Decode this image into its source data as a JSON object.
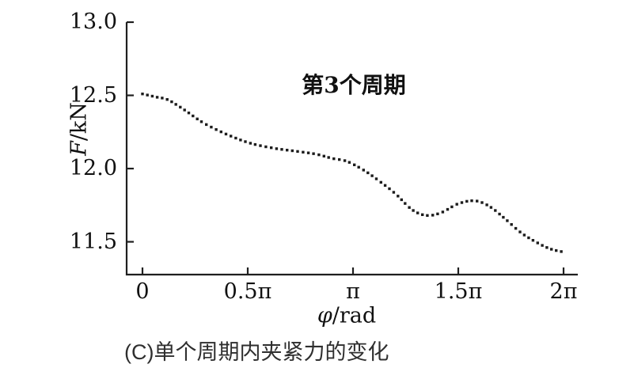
{
  "figure": {
    "ylabel_italic": "F",
    "ylabel_rest": "/kN",
    "xlabel_italic": "φ",
    "xlabel_rest": "/rad",
    "caption": "(C)单个周期内夹紧力的变化"
  },
  "chart_data": {
    "type": "scatter",
    "style": "dotted-line",
    "title": "第3个周期",
    "xlabel": "φ/rad",
    "ylabel": "F/kN",
    "x_unit": "multiples of π (rad)",
    "xlim": [
      0,
      2
    ],
    "ylim": [
      11.276,
      13.0
    ],
    "x_tick_labels": [
      "0",
      "0.5π",
      "π",
      "1.5π",
      "2π"
    ],
    "x_tick_values": [
      0,
      0.5,
      1,
      1.5,
      2
    ],
    "y_tick_labels": [
      "11.5",
      "12.0",
      "12.5",
      "13.0"
    ],
    "y_tick_values": [
      11.5,
      12.0,
      12.5,
      13.0
    ],
    "dot_color": "#1c1c1c",
    "axis_color": "#1f1f1f",
    "points": [
      [
        0.0,
        12.51
      ],
      [
        0.06,
        12.49
      ],
      [
        0.12,
        12.47
      ],
      [
        0.2,
        12.4
      ],
      [
        0.28,
        12.32
      ],
      [
        0.36,
        12.26
      ],
      [
        0.44,
        12.21
      ],
      [
        0.52,
        12.17
      ],
      [
        0.62,
        12.14
      ],
      [
        0.72,
        12.12
      ],
      [
        0.82,
        12.1
      ],
      [
        0.9,
        12.07
      ],
      [
        0.97,
        12.05
      ],
      [
        1.05,
        11.99
      ],
      [
        1.12,
        11.92
      ],
      [
        1.2,
        11.83
      ],
      [
        1.28,
        11.72
      ],
      [
        1.35,
        11.68
      ],
      [
        1.42,
        11.7
      ],
      [
        1.5,
        11.76
      ],
      [
        1.58,
        11.78
      ],
      [
        1.65,
        11.74
      ],
      [
        1.72,
        11.66
      ],
      [
        1.8,
        11.56
      ],
      [
        1.88,
        11.49
      ],
      [
        1.94,
        11.45
      ],
      [
        2.0,
        11.43
      ]
    ]
  }
}
